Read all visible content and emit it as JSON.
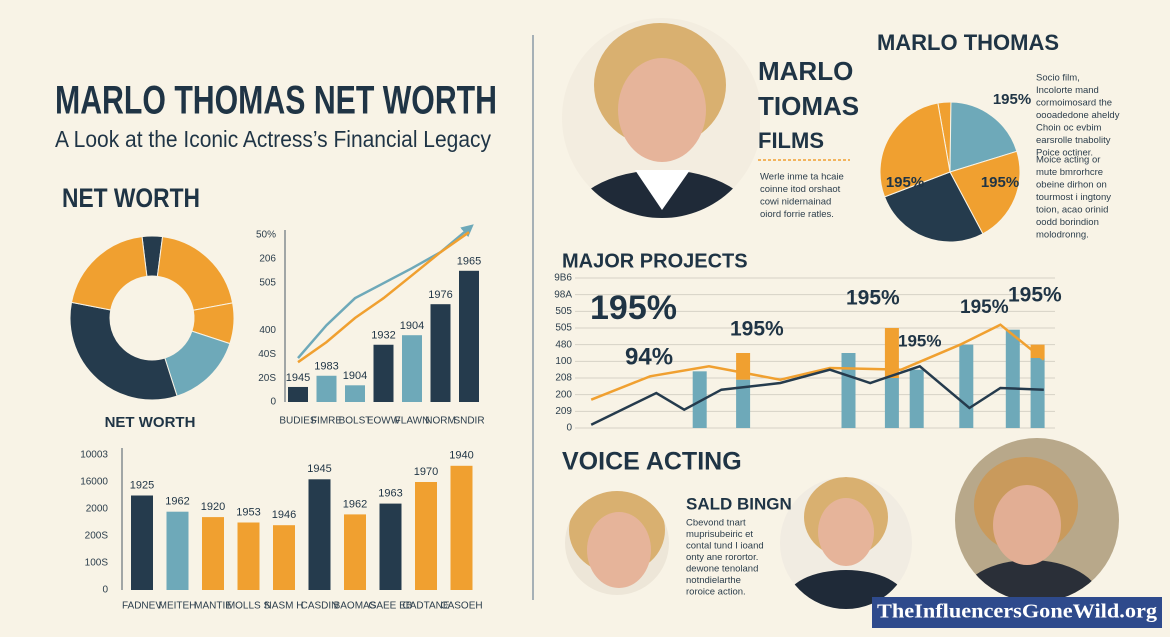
{
  "header": {
    "title": "MARLO THOMAS NET WORTH",
    "subtitle": "A Look at the Iconic Actress’s Financial Legacy",
    "section": "NET WORTH"
  },
  "films": {
    "title": [
      "MARLO",
      "TIOMAS",
      "FILMS"
    ],
    "text": [
      "Werle inme ta hcaie",
      "coinne itod orshaot",
      "cowi nidernainad",
      "oiord forrie ratles."
    ]
  },
  "pie_panel": {
    "text_top": [
      "Socio film,",
      "Incolorte mand",
      "cormoimosard the",
      "oooadedone aheldy",
      "Choin oc evbim",
      "earsrolle tnabolity",
      "Poice octiner."
    ],
    "text_bottom": [
      "Moice acting or",
      "mute bmrorhcre",
      "obeine dirhon on",
      "tourmost i ingtony",
      "toion, acao orinid",
      "oodd borindion",
      "molodronng."
    ]
  },
  "voice": {
    "title": "VOICE ACTING",
    "subtitle": "SALD BINGN",
    "text": [
      "Cbevond tnart",
      "muprisubeiric et",
      "contal tund I ioand",
      "onty ane rorortor.",
      "dewone tenoland",
      "notndielarthe",
      "roroice action."
    ]
  },
  "watermark": "TheInfluencersGoneWild.org",
  "chart_data": [
    {
      "type": "donut",
      "title": "NET WORTH",
      "values": [
        4,
        20,
        8,
        15,
        33,
        20
      ],
      "colors": [
        "#253b4d",
        "#f0a030",
        "#f0a030",
        "#6ea9b9",
        "#253b4d",
        "#f0a030"
      ]
    },
    {
      "type": "bar",
      "categories": [
        "BUDIES",
        "FIMRE",
        "BOLST",
        "EOWW",
        "FLAWN",
        "NORM",
        "SNDIR"
      ],
      "values": [
        0.63,
        1.1,
        0.7,
        2.4,
        2.8,
        4.1,
        5.5
      ],
      "annotations": [
        "1945",
        "1983",
        "1904",
        "1932",
        "1904",
        "1976",
        "1965"
      ],
      "colors": [
        "#253b4d",
        "#6ea9b9",
        "#6ea9b9",
        "#253b4d",
        "#6ea9b9",
        "#253b4d",
        "#253b4d"
      ],
      "lines": [
        {
          "color": "#6ea9b9",
          "values": [
            1.84,
            3.22,
            4.35,
            4.98,
            5.61,
            6.28,
            7.28
          ]
        },
        {
          "color": "#f0a030",
          "values": [
            1.67,
            2.51,
            3.52,
            4.35,
            5.31,
            6.28,
            7.12
          ]
        }
      ],
      "ylim": [
        0,
        7.6
      ],
      "yticks": [
        0,
        {
          "value": 1,
          "label": "20S"
        },
        {
          "value": 2,
          "label": "40S"
        },
        {
          "value": 3,
          "label": "400"
        },
        {
          "value": 5,
          "label": "505"
        },
        {
          "value": 6,
          "label": "206"
        },
        {
          "value": 7,
          "label": "50%"
        }
      ]
    },
    {
      "type": "bar",
      "categories": [
        "FADNEV",
        "MEITEH",
        "MANTIE",
        "MOLLS S",
        "NASM H",
        "CASDIN",
        "BAOMAS",
        "GAEE EB",
        "CADTANE",
        "CASOEH"
      ],
      "values": [
        3.5,
        2.9,
        2.7,
        2.5,
        2.4,
        4.1,
        2.8,
        3.2,
        4.0,
        4.6
      ],
      "annotations": [
        "1925",
        "1962",
        "1920",
        "1953",
        "1946",
        "1945",
        "1962",
        "1963",
        "1970",
        "1940"
      ],
      "colors": [
        "#253b4d",
        "#6ea9b9",
        "#f0a030",
        "#f0a030",
        "#f0a030",
        "#253b4d",
        "#f0a030",
        "#253b4d",
        "#f0a030",
        "#f0a030"
      ],
      "ylim": [
        0,
        5.2
      ],
      "yticks": [
        0,
        {
          "value": 1,
          "label": "100S"
        },
        {
          "value": 2,
          "label": "200S"
        },
        {
          "value": 3,
          "label": "2000"
        },
        {
          "value": 4,
          "label": "16000"
        },
        {
          "value": 5,
          "label": "10003"
        }
      ]
    },
    {
      "type": "pie",
      "title": "MARLO THOMAS",
      "values": [
        3,
        20,
        22,
        27,
        28
      ],
      "colors": [
        "#f0a030",
        "#6ea9b9",
        "#f0a030",
        "#253b4d",
        "#f0a030"
      ],
      "annotations": [
        "195%",
        "195%",
        "195%"
      ]
    },
    {
      "type": "combo",
      "title": "MAJOR PROJECTS",
      "x": [
        3.7,
        5.1,
        8.5,
        9.9,
        10.7,
        12.3,
        13.8,
        14.6
      ],
      "series": [
        {
          "color": "#6ea9b9",
          "values": [
            3.4,
            2.9,
            4.5,
            3.0,
            3.5,
            5.0,
            5.9,
            4.2
          ]
        },
        {
          "color": "#f0a030",
          "values": [
            null,
            1.6,
            null,
            3.0,
            null,
            null,
            null,
            0.8
          ]
        }
      ],
      "lines": [
        {
          "color": "#f0a030",
          "x": [
            0.2,
            2.1,
            4.0,
            6.3,
            7.9,
            10.2,
            12.1,
            13.4,
            14.8
          ],
          "values": [
            1.7,
            3.1,
            3.7,
            2.9,
            3.6,
            3.5,
            5.0,
            6.2,
            4.1
          ]
        },
        {
          "color": "#253b4d",
          "x": [
            0.2,
            2.3,
            3.2,
            4.4,
            6.3,
            7.9,
            9.2,
            10.8,
            12.4,
            13.4,
            14.8
          ],
          "values": [
            0.2,
            2.1,
            1.1,
            2.3,
            2.7,
            3.5,
            2.7,
            3.7,
            1.2,
            2.4,
            2.3
          ]
        }
      ],
      "xlim": [
        0,
        15
      ],
      "ylim": [
        0,
        9
      ],
      "yticks": [
        0,
        {
          "value": 1,
          "label": "209"
        },
        {
          "value": 2,
          "label": "200"
        },
        {
          "value": 3,
          "label": "208"
        },
        {
          "value": 4,
          "label": "100"
        },
        {
          "value": 5,
          "label": "480"
        },
        {
          "value": 6,
          "label": "505"
        },
        {
          "value": 7,
          "label": "505"
        },
        {
          "value": 8,
          "label": "98A"
        },
        {
          "value": 9,
          "label": "9B6"
        }
      ],
      "grid": true,
      "annotations": [
        "195%",
        "94%",
        "195%",
        "195%",
        "195%",
        "195%",
        "195%"
      ]
    }
  ]
}
